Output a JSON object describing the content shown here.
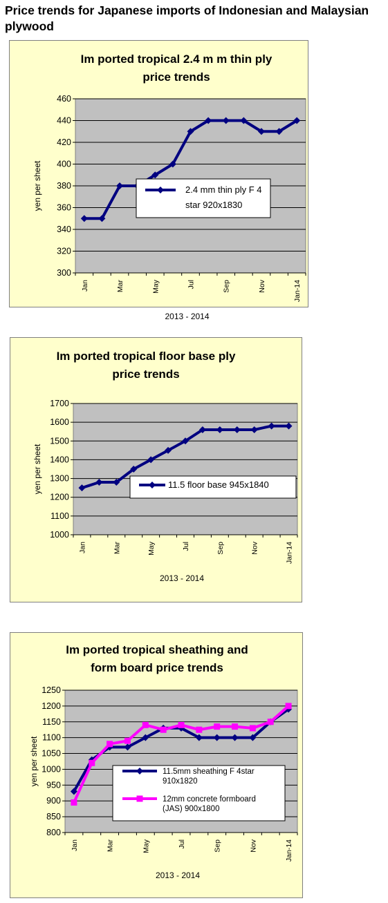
{
  "page": {
    "title": "Price trends for Japanese imports of Indonesian and Malaysian plywood"
  },
  "colors": {
    "panel_background": "#ffffcc",
    "plot_background": "#c0c0c0",
    "series_navy": "#000080",
    "series_magenta": "#ff00ff"
  },
  "chart_data": [
    {
      "type": "line",
      "title": "Imported tropical 2.4 mm thin ply price trends",
      "title_lines": [
        "Im ported tropical 2.4 m m  thin ply",
        "price trends"
      ],
      "xlabel": "2013 - 2014",
      "ylabel": "yen per sheet",
      "ylim": [
        300,
        460
      ],
      "yticks": [
        300,
        320,
        340,
        360,
        380,
        400,
        420,
        440,
        460
      ],
      "x_tick_labels": [
        "Jan",
        "Mar",
        "May",
        "Jul",
        "Sep",
        "Nov",
        "Jan-14"
      ],
      "x": [
        "Jan",
        "Feb",
        "Mar",
        "Apr",
        "May",
        "Jun",
        "Jul",
        "Aug",
        "Sep",
        "Oct",
        "Nov",
        "Dec",
        "Jan-14"
      ],
      "grid": true,
      "legend_position": "center-right",
      "series": [
        {
          "name": "2.4 mm thin ply F 4 star 920x1830",
          "legend_lines": [
            "2.4 mm thin ply F 4",
            "star 920x1830"
          ],
          "color": "#000080",
          "marker": "diamond",
          "values": [
            350,
            350,
            380,
            380,
            390,
            400,
            430,
            440,
            440,
            440,
            430,
            430,
            440
          ]
        }
      ]
    },
    {
      "type": "line",
      "title": "Imported tropical floor base ply price trends",
      "title_lines": [
        "Im ported tropical floor base ply",
        "price trends"
      ],
      "xlabel": "2013 - 2014",
      "ylabel": "yen per sheet",
      "ylim": [
        1000,
        1700
      ],
      "yticks": [
        1000,
        1100,
        1200,
        1300,
        1400,
        1500,
        1600,
        1700
      ],
      "x_tick_labels": [
        "Jan",
        "Mar",
        "May",
        "Jul",
        "Sep",
        "Nov",
        "Jan-14"
      ],
      "x": [
        "Jan",
        "Feb",
        "Mar",
        "Apr",
        "May",
        "Jun",
        "Jul",
        "Aug",
        "Sep",
        "Oct",
        "Nov",
        "Dec",
        "Jan-14"
      ],
      "grid": true,
      "legend_position": "center-right",
      "series": [
        {
          "name": "11.5 floor base 945x1840",
          "legend_lines": [
            "11.5 floor base 945x1840"
          ],
          "color": "#000080",
          "marker": "diamond",
          "values": [
            1250,
            1280,
            1280,
            1350,
            1400,
            1450,
            1500,
            1560,
            1560,
            1560,
            1560,
            1580,
            1580
          ]
        }
      ]
    },
    {
      "type": "line",
      "title": "Imported tropical sheathing and formboard price trends",
      "title_lines": [
        "Im ported tropical sheathing and",
        "form board price trends"
      ],
      "xlabel": "2013 - 2014",
      "ylabel": "yen per sheet",
      "ylim": [
        800,
        1250
      ],
      "yticks": [
        800,
        850,
        900,
        950,
        1000,
        1050,
        1100,
        1150,
        1200,
        1250
      ],
      "x_tick_labels": [
        "Jan",
        "Mar",
        "May",
        "Jul",
        "Sep",
        "Nov",
        "Jan-14"
      ],
      "x": [
        "Jan",
        "Feb",
        "Mar",
        "Apr",
        "May",
        "Jun",
        "Jul",
        "Aug",
        "Sep",
        "Oct",
        "Nov",
        "Dec",
        "Jan-14"
      ],
      "grid": true,
      "legend_position": "bottom-right",
      "series": [
        {
          "name": "11.5mm sheathing F 4star 910x1820",
          "legend_lines": [
            "11.5mm sheathing F 4star",
            "910x1820"
          ],
          "color": "#000080",
          "marker": "diamond",
          "values": [
            930,
            1030,
            1070,
            1070,
            1100,
            1130,
            1130,
            1100,
            1100,
            1100,
            1100,
            1150,
            1190
          ]
        },
        {
          "name": "12mm concrete formboard (JAS) 900x1800",
          "legend_lines": [
            "12mm concrete formboard",
            "(JAS) 900x1800"
          ],
          "color": "#ff00ff",
          "marker": "square",
          "values": [
            895,
            1020,
            1080,
            1090,
            1140,
            1125,
            1140,
            1125,
            1135,
            1135,
            1130,
            1150,
            1200
          ]
        }
      ]
    }
  ]
}
